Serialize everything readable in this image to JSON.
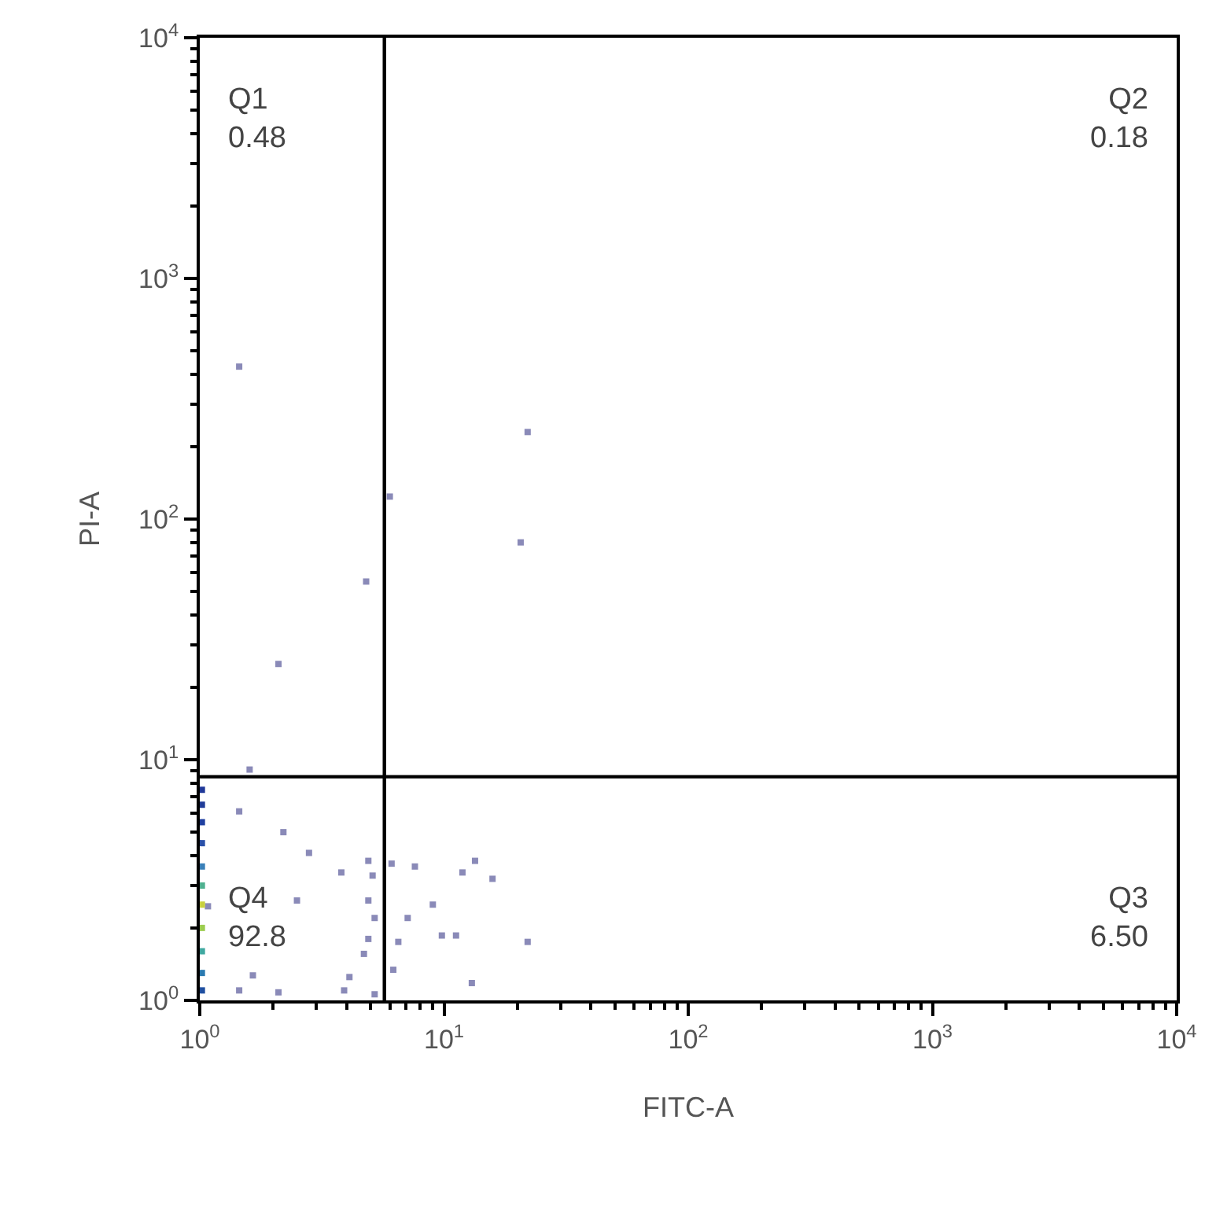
{
  "chart_data": {
    "type": "scatter",
    "xlabel": "FITC-A",
    "ylabel": "PI-A",
    "log": "xy",
    "marker": "square",
    "xlim": [
      1,
      10000
    ],
    "ylim": [
      1,
      10000
    ],
    "xticks": [
      {
        "value": 1,
        "label": "10$^{0}$"
      },
      {
        "value": 10,
        "label": "10$^{1}$"
      },
      {
        "value": 100,
        "label": "10$^{2}$"
      },
      {
        "value": 1000,
        "label": "10$^{3}$"
      },
      {
        "value": 10000,
        "label": "10$^{4}$"
      }
    ],
    "yticks": [
      {
        "value": 1,
        "label": "10$^{0}$"
      },
      {
        "value": 10,
        "label": "10$^{1}$"
      },
      {
        "value": 100,
        "label": "10$^{2}$"
      },
      {
        "value": 1000,
        "label": "10$^{3}$"
      },
      {
        "value": 10000,
        "label": "10$^{4}$"
      }
    ],
    "ref_lines": [
      {
        "axis": "x",
        "value": 5.7,
        "color": "#000000"
      },
      {
        "axis": "y",
        "value": 8.5,
        "color": "#000000"
      }
    ],
    "annotations": [
      "Q1\n0.48",
      "Q2\n0.18",
      "Q4\n92.8",
      "Q3\n6.50"
    ],
    "series": [
      {
        "color": "#8a8ab8",
        "x": [
          1.45,
          4.8,
          2.1,
          1.6,
          22,
          20.6,
          6.0,
          1.45,
          2.2,
          4.9,
          5.1,
          3.8,
          4.9,
          2.5,
          5.2,
          4.9,
          4.7,
          1.08,
          1.45,
          2.1,
          3.9,
          4.1,
          5.2,
          1.65,
          2.8,
          6.1,
          7.6,
          13.4,
          11.9,
          15.8,
          9.0,
          7.1,
          6.5,
          9.8,
          11.2,
          22,
          13,
          6.2
        ],
        "values": [
          430,
          55,
          25,
          9.1,
          230,
          80,
          124,
          6.1,
          5.0,
          3.8,
          3.3,
          3.4,
          2.6,
          2.6,
          2.2,
          1.8,
          1.56,
          2.46,
          1.1,
          1.08,
          1.1,
          1.25,
          1.06,
          1.27,
          4.1,
          3.7,
          3.6,
          3.8,
          3.4,
          3.2,
          2.5,
          2.2,
          1.75,
          1.86,
          1.86,
          1.75,
          1.18,
          1.34
        ]
      },
      {
        "x": [
          1.02,
          1.02,
          1.02,
          1.02,
          1.02,
          1.02,
          1.02,
          1.02,
          1.02,
          1.02,
          1.02
        ],
        "values": [
          1.1,
          1.3,
          1.6,
          2.0,
          2.5,
          3.0,
          3.6,
          4.5,
          5.5,
          6.5,
          7.5
        ],
        "colors": [
          "#1f4fa0",
          "#2a7ab0",
          "#40a8a0",
          "#9ccc50",
          "#c8d040",
          "#50b090",
          "#3a80b8",
          "#2a50a8",
          "#2040a0",
          "#203c98",
          "#203898"
        ]
      }
    ]
  }
}
